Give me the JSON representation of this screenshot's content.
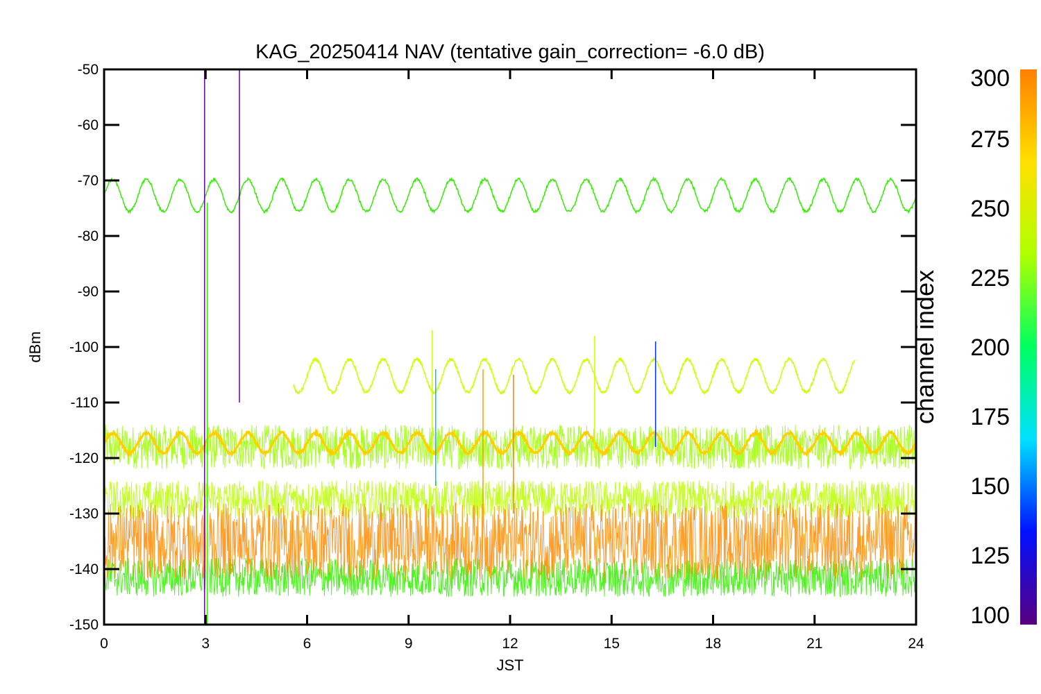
{
  "chart_data": {
    "type": "line",
    "title": "KAG_20250414 NAV (tentative gain_correction= -6.0 dB)",
    "xlabel": "JST",
    "ylabel": "dBm",
    "xlim": [
      0,
      24
    ],
    "ylim": [
      -150,
      -50
    ],
    "xticks": [
      0,
      3,
      6,
      9,
      12,
      15,
      18,
      21,
      24
    ],
    "xtick_labels": [
      "0",
      "3",
      "6",
      "9",
      "12",
      "15",
      "18",
      "21",
      "24"
    ],
    "yticks": [
      -50,
      -60,
      -70,
      -80,
      -90,
      -100,
      -110,
      -120,
      -130,
      -140,
      -150
    ],
    "ytick_labels": [
      "-50",
      "-60",
      "-70",
      "-80",
      "-90",
      "-100",
      "-110",
      "-120",
      "-130",
      "-140",
      "-150"
    ],
    "grid": false,
    "colorbar": {
      "label": "channel index",
      "range": [
        100,
        300
      ],
      "ticks": [
        300,
        275,
        250,
        225,
        200,
        175,
        150,
        125,
        100
      ],
      "tick_labels": [
        "300",
        "275",
        "250",
        "225",
        "200",
        "175",
        "150",
        "125",
        "100"
      ],
      "colormap": [
        "#5a0080",
        "#0010ff",
        "#00e0ff",
        "#00ff60",
        "#b0ff00",
        "#ffe000",
        "#ff8000"
      ]
    },
    "series": [
      {
        "channel": 240,
        "color": "#33ee00",
        "kind": "oscillation",
        "x_range": [
          0,
          24
        ],
        "mean": -72.7,
        "amplitude": 2.9,
        "period_h": 1.0
      },
      {
        "channel": 262,
        "color": "#ccff00",
        "kind": "oscillation",
        "x_range": [
          5.6,
          22.2
        ],
        "mean": -105.2,
        "amplitude": 3.0,
        "period_h": 1.0
      },
      {
        "channel": 255,
        "color": "#99ff00",
        "kind": "noise_band",
        "x_range": [
          0,
          24
        ],
        "low": -122,
        "high": -114
      },
      {
        "channel": 285,
        "color": "#ffd000",
        "kind": "oscillation",
        "x_range": [
          0,
          24
        ],
        "mean": -117.3,
        "amplitude": 1.8,
        "period_h": 1.0
      },
      {
        "channel": 258,
        "color": "#b8ff00",
        "kind": "noise_band",
        "x_range": [
          0,
          24
        ],
        "low": -131,
        "high": -124
      },
      {
        "channel": 230,
        "color": "#33ee00",
        "kind": "noise_band",
        "x_range": [
          0,
          24
        ],
        "low": -145,
        "high": -138
      },
      {
        "channel": 295,
        "color": "#ff8c00",
        "kind": "noise_band",
        "x_range": [
          0,
          24
        ],
        "low": -142,
        "high": -128
      }
    ],
    "spikes": [
      {
        "x": 2.97,
        "y_top": -50,
        "y_bottom": -150,
        "color": "#6a00a0"
      },
      {
        "x": 4.0,
        "y_top": -50,
        "y_bottom": -110,
        "color": "#6a00a0"
      },
      {
        "x": 3.05,
        "y_top": -74,
        "y_bottom": -150,
        "color": "#33ee00"
      },
      {
        "x": 9.7,
        "y_top": -97,
        "y_bottom": -120,
        "color": "#ccff00"
      },
      {
        "x": 11.2,
        "y_top": -104,
        "y_bottom": -130,
        "color": "#ffa000"
      },
      {
        "x": 12.1,
        "y_top": -105,
        "y_bottom": -130,
        "color": "#ff8000"
      },
      {
        "x": 14.5,
        "y_top": -98,
        "y_bottom": -120,
        "color": "#ccff00"
      },
      {
        "x": 16.3,
        "y_top": -99,
        "y_bottom": -118,
        "color": "#0030ff"
      },
      {
        "x": 9.8,
        "y_top": -104,
        "y_bottom": -125,
        "color": "#00c0ff"
      }
    ],
    "gap": {
      "x": 3.05,
      "note_color": "#ffffff"
    }
  }
}
